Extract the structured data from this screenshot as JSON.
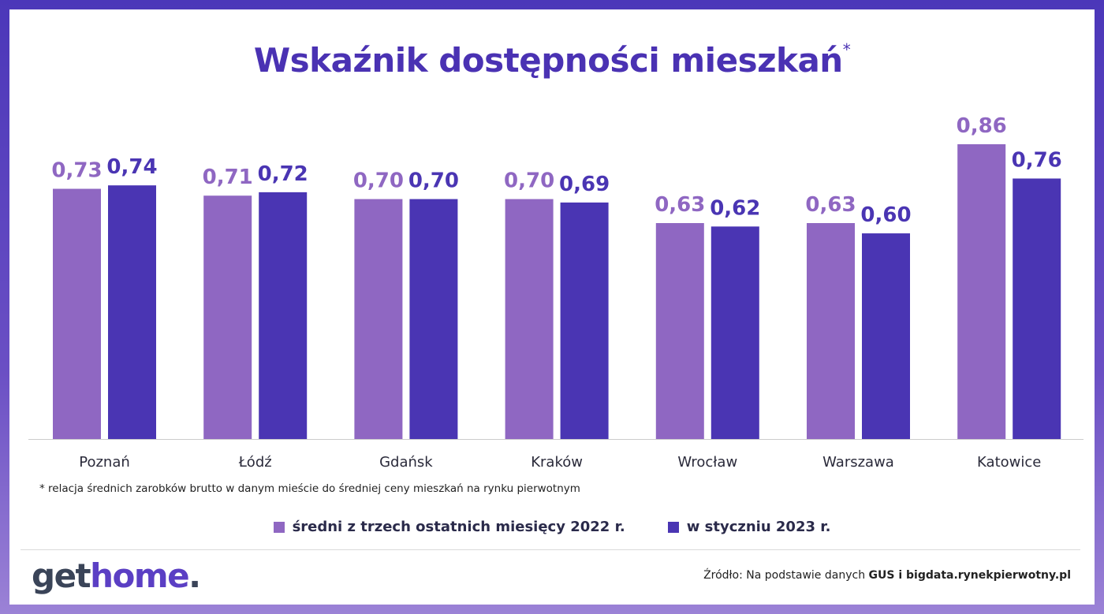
{
  "title": "Wskaźnik dostępności mieszkań",
  "title_mark": "*",
  "footnote": "* relacja średnich zarobków brutto w danym mieście do średniej ceny mieszkań na rynku pierwotnym",
  "legend": {
    "series_a": "średni z trzech ostatnich miesięcy 2022 r.",
    "series_b": "w styczniu 2023 r."
  },
  "colors": {
    "series_a": "#8f67c2",
    "series_b": "#4a35b3",
    "axis": "#cccccc"
  },
  "logo": {
    "part1": "get",
    "part2": "home",
    "part3": "."
  },
  "source": {
    "prefix": "Źródło: Na podstawie danych ",
    "bold": "GUS i bigdata.rynekpierwotny.pl"
  },
  "chart_data": {
    "type": "bar",
    "categories": [
      "Poznań",
      "Łódź",
      "Gdańsk",
      "Kraków",
      "Wrocław",
      "Warszawa",
      "Katowice"
    ],
    "series": [
      {
        "name": "średni z trzech ostatnich miesięcy 2022 r.",
        "values": [
          0.73,
          0.71,
          0.7,
          0.7,
          0.63,
          0.63,
          0.86
        ],
        "labels": [
          "0,73",
          "0,71",
          "0,70",
          "0,70",
          "0,63",
          "0,63",
          "0,86"
        ]
      },
      {
        "name": "w styczniu 2023 r.",
        "values": [
          0.74,
          0.72,
          0.7,
          0.69,
          0.62,
          0.6,
          0.76
        ],
        "labels": [
          "0,74",
          "0,72",
          "0,70",
          "0,69",
          "0,62",
          "0,60",
          "0,76"
        ]
      }
    ],
    "ylim": [
      0,
      0.86
    ],
    "grid": false,
    "legend": "bottom"
  }
}
